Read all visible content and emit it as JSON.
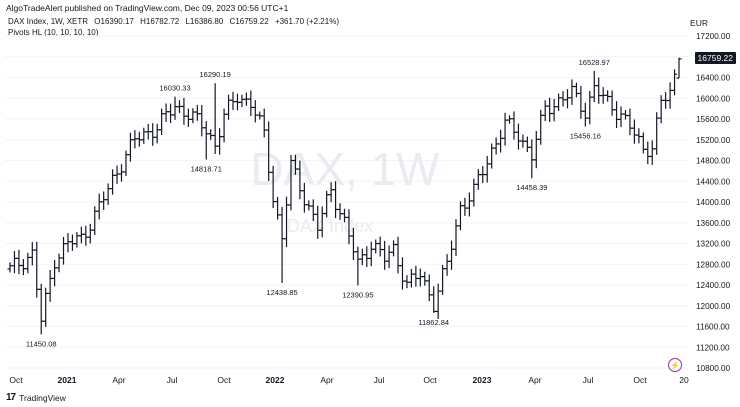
{
  "header": {
    "published": "AlgoTradeAlert published on TradingView.com, Dec 09, 2023 00:56 UTC+1",
    "symbol_line": {
      "name": "DAX Index, 1W, XETR",
      "open": "O16390.17",
      "high": "H16782.72",
      "low": "L16386.80",
      "close": "C16759.22",
      "change": "+361.70 (+2.21%)"
    },
    "indicator": "Pivots HL (10, 10, 10, 10)"
  },
  "watermark": {
    "main": "DAX, 1W",
    "sub": "DAX Index"
  },
  "axis": {
    "currency": "EUR",
    "last_price": "16759.22"
  },
  "footer": {
    "brand": "TradingView",
    "logo": "17"
  },
  "colors": {
    "bar": "#131722",
    "grid": "#f0f3fa",
    "tag_bg": "#131722",
    "watermark": "#e9ebf0"
  },
  "chart_data": {
    "type": "ohlc",
    "interval": "weekly",
    "ylim": [
      10800,
      17200
    ],
    "yticks": [
      10800,
      11200,
      11600,
      12000,
      12400,
      12800,
      13200,
      13600,
      14000,
      14400,
      14800,
      15200,
      15600,
      16000,
      16400,
      16800,
      17200
    ],
    "xticks": [
      "Oct",
      "2021",
      "Apr",
      "Jul",
      "Oct",
      "2022",
      "Apr",
      "Jul",
      "Oct",
      "2023",
      "Apr",
      "Jul",
      "Oct",
      "20"
    ],
    "pivot_labels": [
      {
        "text": "11450.08",
        "type": "low"
      },
      {
        "text": "16030.33",
        "type": "high"
      },
      {
        "text": "16290.19",
        "type": "high"
      },
      {
        "text": "14818.71",
        "type": "low"
      },
      {
        "text": "12438.85",
        "type": "low"
      },
      {
        "text": "12390.95",
        "type": "low"
      },
      {
        "text": "11862.84",
        "type": "low"
      },
      {
        "text": "14458.39",
        "type": "low"
      },
      {
        "text": "16528.97",
        "type": "high"
      },
      {
        "text": "15456.16",
        "type": "low"
      }
    ],
    "anchors": [
      {
        "i": 0,
        "p": 12700
      },
      {
        "i": 5,
        "p": 13000
      },
      {
        "i": 7,
        "p": 11700
      },
      {
        "i": 10,
        "p": 12900
      },
      {
        "i": 13,
        "p": 13200
      },
      {
        "i": 16,
        "p": 13300
      },
      {
        "i": 20,
        "p": 13900
      },
      {
        "i": 24,
        "p": 14600
      },
      {
        "i": 28,
        "p": 15200
      },
      {
        "i": 33,
        "p": 15450
      },
      {
        "i": 37,
        "p": 15850
      },
      {
        "i": 40,
        "p": 15700
      },
      {
        "i": 44,
        "p": 15400
      },
      {
        "i": 46,
        "p": 15100
      },
      {
        "i": 48,
        "p": 15650
      },
      {
        "i": 51,
        "p": 16050
      },
      {
        "i": 54,
        "p": 15900
      },
      {
        "i": 57,
        "p": 15300
      },
      {
        "i": 59,
        "p": 14100
      },
      {
        "i": 61,
        "p": 13300
      },
      {
        "i": 63,
        "p": 14700
      },
      {
        "i": 66,
        "p": 14100
      },
      {
        "i": 69,
        "p": 13500
      },
      {
        "i": 72,
        "p": 14250
      },
      {
        "i": 75,
        "p": 13600
      },
      {
        "i": 78,
        "p": 12800
      },
      {
        "i": 81,
        "p": 13200
      },
      {
        "i": 84,
        "p": 12900
      },
      {
        "i": 86,
        "p": 13100
      },
      {
        "i": 89,
        "p": 12400
      },
      {
        "i": 92,
        "p": 12600
      },
      {
        "i": 95,
        "p": 12050
      },
      {
        "i": 98,
        "p": 12800
      },
      {
        "i": 101,
        "p": 13900
      },
      {
        "i": 104,
        "p": 14200
      },
      {
        "i": 108,
        "p": 15000
      },
      {
        "i": 111,
        "p": 15500
      },
      {
        "i": 114,
        "p": 15300
      },
      {
        "i": 117,
        "p": 14900
      },
      {
        "i": 120,
        "p": 15800
      },
      {
        "i": 123,
        "p": 15950
      },
      {
        "i": 126,
        "p": 16100
      },
      {
        "i": 129,
        "p": 15750
      },
      {
        "i": 131,
        "p": 16200
      },
      {
        "i": 134,
        "p": 15900
      },
      {
        "i": 137,
        "p": 15700
      },
      {
        "i": 140,
        "p": 15300
      },
      {
        "i": 142,
        "p": 15000
      },
      {
        "i": 144,
        "p": 15100
      },
      {
        "i": 146,
        "p": 15900
      },
      {
        "i": 148,
        "p": 16100
      },
      {
        "i": 149,
        "p": 16400
      },
      {
        "i": 150,
        "p": 16759
      }
    ],
    "pivots": [
      {
        "i": 7,
        "lo": 11450
      },
      {
        "i": 37,
        "hi": 16030
      },
      {
        "i": 46,
        "hi": 16290
      },
      {
        "i": 44,
        "lo": 14819
      },
      {
        "i": 61,
        "lo": 12439
      },
      {
        "i": 78,
        "lo": 12391
      },
      {
        "i": 95,
        "lo": 11863
      },
      {
        "i": 117,
        "lo": 14458
      },
      {
        "i": 131,
        "hi": 16529
      },
      {
        "i": 129,
        "lo": 15456
      }
    ],
    "last_bar": {
      "open": 16390.17,
      "high": 16782.72,
      "low": 16386.8,
      "close": 16759.22
    }
  }
}
